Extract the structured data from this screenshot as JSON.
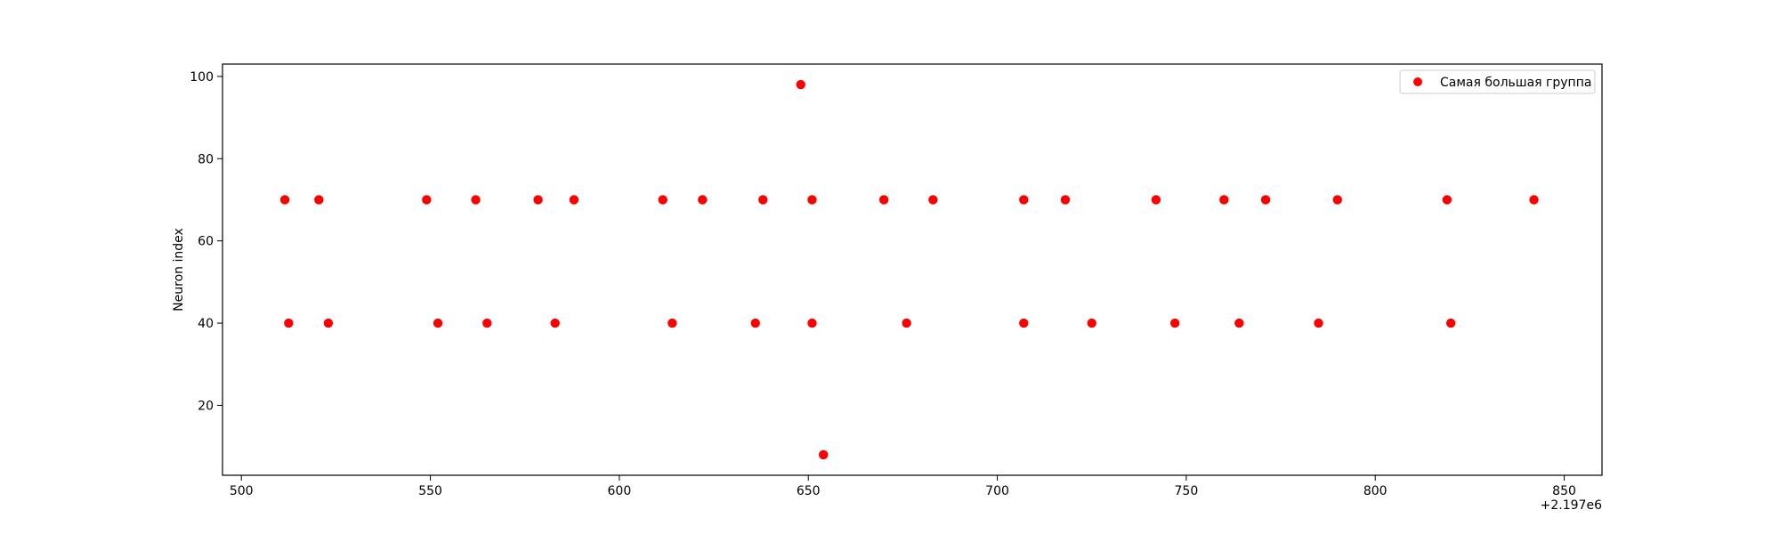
{
  "chart_data": {
    "type": "scatter",
    "title": "",
    "xlabel": "",
    "ylabel": "Neuron index",
    "x_offset_label": "+2.197e6",
    "xlim": [
      495,
      860
    ],
    "ylim": [
      3,
      103
    ],
    "x_ticks": [
      500,
      550,
      600,
      650,
      700,
      750,
      800,
      850
    ],
    "y_ticks": [
      20,
      40,
      60,
      80,
      100
    ],
    "grid": false,
    "legend_position": "top-right",
    "series": [
      {
        "name": "Самая большая группа",
        "color": "#ff0000",
        "points": [
          {
            "x": 511.5,
            "y": 70
          },
          {
            "x": 520.5,
            "y": 70
          },
          {
            "x": 549,
            "y": 70
          },
          {
            "x": 562,
            "y": 70
          },
          {
            "x": 578.5,
            "y": 70
          },
          {
            "x": 588,
            "y": 70
          },
          {
            "x": 611.5,
            "y": 70
          },
          {
            "x": 622,
            "y": 70
          },
          {
            "x": 638,
            "y": 70
          },
          {
            "x": 651,
            "y": 70
          },
          {
            "x": 670,
            "y": 70
          },
          {
            "x": 683,
            "y": 70
          },
          {
            "x": 707,
            "y": 70
          },
          {
            "x": 718,
            "y": 70
          },
          {
            "x": 742,
            "y": 70
          },
          {
            "x": 760,
            "y": 70
          },
          {
            "x": 771,
            "y": 70
          },
          {
            "x": 790,
            "y": 70
          },
          {
            "x": 819,
            "y": 70
          },
          {
            "x": 842,
            "y": 70
          },
          {
            "x": 512.5,
            "y": 40
          },
          {
            "x": 523,
            "y": 40
          },
          {
            "x": 552,
            "y": 40
          },
          {
            "x": 565,
            "y": 40
          },
          {
            "x": 583,
            "y": 40
          },
          {
            "x": 614,
            "y": 40
          },
          {
            "x": 636,
            "y": 40
          },
          {
            "x": 651,
            "y": 40
          },
          {
            "x": 676,
            "y": 40
          },
          {
            "x": 707,
            "y": 40
          },
          {
            "x": 725,
            "y": 40
          },
          {
            "x": 747,
            "y": 40
          },
          {
            "x": 764,
            "y": 40
          },
          {
            "x": 785,
            "y": 40
          },
          {
            "x": 820,
            "y": 40
          },
          {
            "x": 648,
            "y": 98
          },
          {
            "x": 654,
            "y": 8
          }
        ]
      }
    ]
  }
}
